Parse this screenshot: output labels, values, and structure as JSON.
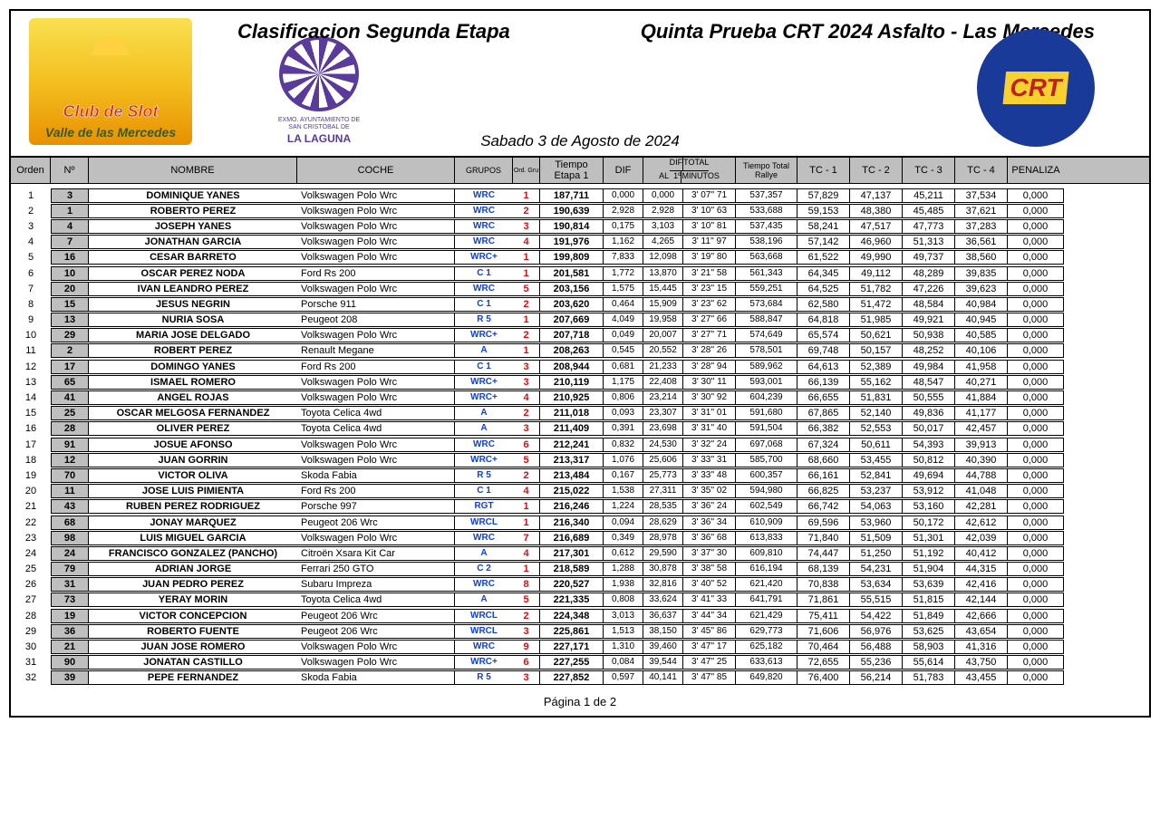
{
  "header": {
    "title_left": "Clasificacion  Segunda Etapa",
    "title_right": "Quinta Prueba CRT 2024 Asfalto - Las Mercedes",
    "date": "Sabado 3 de Agosto  de 2024",
    "logo_left_line1": "Club de Slot",
    "logo_left_line2": "Valle de las Mercedes",
    "logo_center_small": "EXMO. AYUNTAMIENTO DE\nSAN CRISTÓBAL DE",
    "logo_center_big": "LA LAGUNA",
    "logo_right_text": "CRT"
  },
  "columns": {
    "orden": "Orden",
    "num": "Nº",
    "nombre": "NOMBRE",
    "coche": "COCHE",
    "grupos": "GRUPOS",
    "ordgru": "Ord. Gru",
    "tiempo": "Tiempo\nEtapa 1",
    "dif": "DIF",
    "difal": "DIF\nAL  1º",
    "total": "TOTAL\nMINUTOS",
    "rallye": "Tiempo Total\nRallye",
    "tc1": "TC - 1",
    "tc2": "TC - 2",
    "tc3": "TC - 3",
    "tc4": "TC - 4",
    "pen": "PENALIZA"
  },
  "rows": [
    {
      "orden": 1,
      "num": 3,
      "nombre": "DOMINIQUE YANES",
      "coche": "Volkswagen Polo Wrc",
      "grupo": "WRC",
      "og": 1,
      "t": "187,711",
      "dif": "0,000",
      "al": "0,000",
      "tot": "3' 07'' 71",
      "ral": "537,357",
      "tc1": "57,829",
      "tc2": "47,137",
      "tc3": "45,211",
      "tc4": "37,534",
      "pen": "0,000"
    },
    {
      "orden": 2,
      "num": 1,
      "nombre": "ROBERTO PEREZ",
      "coche": "Volkswagen Polo Wrc",
      "grupo": "WRC",
      "og": 2,
      "t": "190,639",
      "dif": "2,928",
      "al": "2,928",
      "tot": "3' 10'' 63",
      "ral": "533,688",
      "tc1": "59,153",
      "tc2": "48,380",
      "tc3": "45,485",
      "tc4": "37,621",
      "pen": "0,000"
    },
    {
      "orden": 3,
      "num": 4,
      "nombre": "JOSEPH YANES",
      "coche": "Volkswagen Polo Wrc",
      "grupo": "WRC",
      "og": 3,
      "t": "190,814",
      "dif": "0,175",
      "al": "3,103",
      "tot": "3' 10'' 81",
      "ral": "537,435",
      "tc1": "58,241",
      "tc2": "47,517",
      "tc3": "47,773",
      "tc4": "37,283",
      "pen": "0,000"
    },
    {
      "orden": 4,
      "num": 7,
      "nombre": "JONATHAN GARCIA",
      "coche": "Volkswagen Polo Wrc",
      "grupo": "WRC",
      "og": 4,
      "t": "191,976",
      "dif": "1,162",
      "al": "4,265",
      "tot": "3' 11'' 97",
      "ral": "538,196",
      "tc1": "57,142",
      "tc2": "46,960",
      "tc3": "51,313",
      "tc4": "36,561",
      "pen": "0,000"
    },
    {
      "orden": 5,
      "num": 16,
      "nombre": "CESAR BARRETO",
      "coche": "Volkswagen Polo Wrc",
      "grupo": "WRC+",
      "og": 1,
      "t": "199,809",
      "dif": "7,833",
      "al": "12,098",
      "tot": "3' 19'' 80",
      "ral": "563,668",
      "tc1": "61,522",
      "tc2": "49,990",
      "tc3": "49,737",
      "tc4": "38,560",
      "pen": "0,000"
    },
    {
      "orden": 6,
      "num": 10,
      "nombre": "OSCAR PEREZ NODA",
      "coche": "Ford Rs 200",
      "grupo": "C 1",
      "og": 1,
      "t": "201,581",
      "dif": "1,772",
      "al": "13,870",
      "tot": "3' 21'' 58",
      "ral": "561,343",
      "tc1": "64,345",
      "tc2": "49,112",
      "tc3": "48,289",
      "tc4": "39,835",
      "pen": "0,000"
    },
    {
      "orden": 7,
      "num": 20,
      "nombre": "IVAN LEANDRO PEREZ",
      "coche": "Volkswagen Polo Wrc",
      "grupo": "WRC",
      "og": 5,
      "t": "203,156",
      "dif": "1,575",
      "al": "15,445",
      "tot": "3' 23'' 15",
      "ral": "559,251",
      "tc1": "64,525",
      "tc2": "51,782",
      "tc3": "47,226",
      "tc4": "39,623",
      "pen": "0,000"
    },
    {
      "orden": 8,
      "num": 15,
      "nombre": "JESUS NEGRIN",
      "coche": "Porsche 911",
      "grupo": "C 1",
      "og": 2,
      "t": "203,620",
      "dif": "0,464",
      "al": "15,909",
      "tot": "3' 23'' 62",
      "ral": "573,684",
      "tc1": "62,580",
      "tc2": "51,472",
      "tc3": "48,584",
      "tc4": "40,984",
      "pen": "0,000"
    },
    {
      "orden": 9,
      "num": 13,
      "nombre": "NURIA SOSA",
      "coche": "Peugeot 208",
      "grupo": "R 5",
      "og": 1,
      "t": "207,669",
      "dif": "4,049",
      "al": "19,958",
      "tot": "3' 27'' 66",
      "ral": "588,847",
      "tc1": "64,818",
      "tc2": "51,985",
      "tc3": "49,921",
      "tc4": "40,945",
      "pen": "0,000"
    },
    {
      "orden": 10,
      "num": 29,
      "nombre": "MARIA JOSE DELGADO",
      "coche": "Volkswagen Polo Wrc",
      "grupo": "WRC+",
      "og": 2,
      "t": "207,718",
      "dif": "0,049",
      "al": "20,007",
      "tot": "3' 27'' 71",
      "ral": "574,649",
      "tc1": "65,574",
      "tc2": "50,621",
      "tc3": "50,938",
      "tc4": "40,585",
      "pen": "0,000"
    },
    {
      "orden": 11,
      "num": 2,
      "nombre": "ROBERT PEREZ",
      "coche": "Renault Megane",
      "grupo": "A",
      "og": 1,
      "t": "208,263",
      "dif": "0,545",
      "al": "20,552",
      "tot": "3' 28'' 26",
      "ral": "578,501",
      "tc1": "69,748",
      "tc2": "50,157",
      "tc3": "48,252",
      "tc4": "40,106",
      "pen": "0,000"
    },
    {
      "orden": 12,
      "num": 17,
      "nombre": "DOMINGO YANES",
      "coche": "Ford Rs 200",
      "grupo": "C 1",
      "og": 3,
      "t": "208,944",
      "dif": "0,681",
      "al": "21,233",
      "tot": "3' 28'' 94",
      "ral": "589,962",
      "tc1": "64,613",
      "tc2": "52,389",
      "tc3": "49,984",
      "tc4": "41,958",
      "pen": "0,000"
    },
    {
      "orden": 13,
      "num": 65,
      "nombre": "ISMAEL ROMERO",
      "coche": "Volkswagen Polo Wrc",
      "grupo": "WRC+",
      "og": 3,
      "t": "210,119",
      "dif": "1,175",
      "al": "22,408",
      "tot": "3' 30'' 11",
      "ral": "593,001",
      "tc1": "66,139",
      "tc2": "55,162",
      "tc3": "48,547",
      "tc4": "40,271",
      "pen": "0,000"
    },
    {
      "orden": 14,
      "num": 41,
      "nombre": "ANGEL ROJAS",
      "coche": "Volkswagen Polo Wrc",
      "grupo": "WRC+",
      "og": 4,
      "t": "210,925",
      "dif": "0,806",
      "al": "23,214",
      "tot": "3' 30'' 92",
      "ral": "604,239",
      "tc1": "66,655",
      "tc2": "51,831",
      "tc3": "50,555",
      "tc4": "41,884",
      "pen": "0,000"
    },
    {
      "orden": 15,
      "num": 25,
      "nombre": "OSCAR MELGOSA FERNANDEZ",
      "coche": "Toyota Celica 4wd",
      "grupo": "A",
      "og": 2,
      "t": "211,018",
      "dif": "0,093",
      "al": "23,307",
      "tot": "3' 31'' 01",
      "ral": "591,680",
      "tc1": "67,865",
      "tc2": "52,140",
      "tc3": "49,836",
      "tc4": "41,177",
      "pen": "0,000"
    },
    {
      "orden": 16,
      "num": 28,
      "nombre": "OLIVER PEREZ",
      "coche": "Toyota Celica 4wd",
      "grupo": "A",
      "og": 3,
      "t": "211,409",
      "dif": "0,391",
      "al": "23,698",
      "tot": "3' 31'' 40",
      "ral": "591,504",
      "tc1": "66,382",
      "tc2": "52,553",
      "tc3": "50,017",
      "tc4": "42,457",
      "pen": "0,000"
    },
    {
      "orden": 17,
      "num": 91,
      "nombre": "JOSUE AFONSO",
      "coche": "Volkswagen Polo Wrc",
      "grupo": "WRC",
      "og": 6,
      "t": "212,241",
      "dif": "0,832",
      "al": "24,530",
      "tot": "3' 32'' 24",
      "ral": "697,068",
      "tc1": "67,324",
      "tc2": "50,611",
      "tc3": "54,393",
      "tc4": "39,913",
      "pen": "0,000"
    },
    {
      "orden": 18,
      "num": 12,
      "nombre": "JUAN GORRIN",
      "coche": "Volkswagen Polo Wrc",
      "grupo": "WRC+",
      "og": 5,
      "t": "213,317",
      "dif": "1,076",
      "al": "25,606",
      "tot": "3' 33'' 31",
      "ral": "585,700",
      "tc1": "68,660",
      "tc2": "53,455",
      "tc3": "50,812",
      "tc4": "40,390",
      "pen": "0,000"
    },
    {
      "orden": 19,
      "num": 70,
      "nombre": "VICTOR OLIVA",
      "coche": "Skoda Fabia",
      "grupo": "R 5",
      "og": 2,
      "t": "213,484",
      "dif": "0,167",
      "al": "25,773",
      "tot": "3' 33'' 48",
      "ral": "600,357",
      "tc1": "66,161",
      "tc2": "52,841",
      "tc3": "49,694",
      "tc4": "44,788",
      "pen": "0,000"
    },
    {
      "orden": 20,
      "num": 11,
      "nombre": "JOSE LUIS PIMIENTA",
      "coche": "Ford Rs 200",
      "grupo": "C 1",
      "og": 4,
      "t": "215,022",
      "dif": "1,538",
      "al": "27,311",
      "tot": "3' 35'' 02",
      "ral": "594,980",
      "tc1": "66,825",
      "tc2": "53,237",
      "tc3": "53,912",
      "tc4": "41,048",
      "pen": "0,000"
    },
    {
      "orden": 21,
      "num": 43,
      "nombre": "RUBEN PEREZ RODRIGUEZ",
      "coche": "Porsche 997",
      "grupo": "RGT",
      "og": 1,
      "t": "216,246",
      "dif": "1,224",
      "al": "28,535",
      "tot": "3' 36'' 24",
      "ral": "602,549",
      "tc1": "66,742",
      "tc2": "54,063",
      "tc3": "53,160",
      "tc4": "42,281",
      "pen": "0,000"
    },
    {
      "orden": 22,
      "num": 68,
      "nombre": "JONAY MARQUEZ",
      "coche": "Peugeot 206 Wrc",
      "grupo": "WRCL",
      "og": 1,
      "t": "216,340",
      "dif": "0,094",
      "al": "28,629",
      "tot": "3' 36'' 34",
      "ral": "610,909",
      "tc1": "69,596",
      "tc2": "53,960",
      "tc3": "50,172",
      "tc4": "42,612",
      "pen": "0,000"
    },
    {
      "orden": 23,
      "num": 98,
      "nombre": "LUIS MIGUEL GARCIA",
      "coche": "Volkswagen Polo Wrc",
      "grupo": "WRC",
      "og": 7,
      "t": "216,689",
      "dif": "0,349",
      "al": "28,978",
      "tot": "3' 36'' 68",
      "ral": "613,833",
      "tc1": "71,840",
      "tc2": "51,509",
      "tc3": "51,301",
      "tc4": "42,039",
      "pen": "0,000"
    },
    {
      "orden": 24,
      "num": 24,
      "nombre": "FRANCISCO GONZALEZ (PANCHO)",
      "coche": "Citroën Xsara Kit Car",
      "grupo": "A",
      "og": 4,
      "t": "217,301",
      "dif": "0,612",
      "al": "29,590",
      "tot": "3' 37'' 30",
      "ral": "609,810",
      "tc1": "74,447",
      "tc2": "51,250",
      "tc3": "51,192",
      "tc4": "40,412",
      "pen": "0,000"
    },
    {
      "orden": 25,
      "num": 79,
      "nombre": "ADRIAN JORGE",
      "coche": "Ferrari 250 GTO",
      "grupo": "C 2",
      "og": 1,
      "t": "218,589",
      "dif": "1,288",
      "al": "30,878",
      "tot": "3' 38'' 58",
      "ral": "616,194",
      "tc1": "68,139",
      "tc2": "54,231",
      "tc3": "51,904",
      "tc4": "44,315",
      "pen": "0,000"
    },
    {
      "orden": 26,
      "num": 31,
      "nombre": "JUAN PEDRO PEREZ",
      "coche": "Subaru Impreza",
      "grupo": "WRC",
      "og": 8,
      "t": "220,527",
      "dif": "1,938",
      "al": "32,816",
      "tot": "3' 40'' 52",
      "ral": "621,420",
      "tc1": "70,838",
      "tc2": "53,634",
      "tc3": "53,639",
      "tc4": "42,416",
      "pen": "0,000"
    },
    {
      "orden": 27,
      "num": 73,
      "nombre": "YERAY MORIN",
      "coche": "Toyota Celica 4wd",
      "grupo": "A",
      "og": 5,
      "t": "221,335",
      "dif": "0,808",
      "al": "33,624",
      "tot": "3' 41'' 33",
      "ral": "641,791",
      "tc1": "71,861",
      "tc2": "55,515",
      "tc3": "51,815",
      "tc4": "42,144",
      "pen": "0,000"
    },
    {
      "orden": 28,
      "num": 19,
      "nombre": "VICTOR CONCEPCION",
      "coche": "Peugeot 206 Wrc",
      "grupo": "WRCL",
      "og": 2,
      "t": "224,348",
      "dif": "3,013",
      "al": "36,637",
      "tot": "3' 44'' 34",
      "ral": "621,429",
      "tc1": "75,411",
      "tc2": "54,422",
      "tc3": "51,849",
      "tc4": "42,666",
      "pen": "0,000"
    },
    {
      "orden": 29,
      "num": 36,
      "nombre": "ROBERTO FUENTE",
      "coche": "Peugeot 206 Wrc",
      "grupo": "WRCL",
      "og": 3,
      "t": "225,861",
      "dif": "1,513",
      "al": "38,150",
      "tot": "3' 45'' 86",
      "ral": "629,773",
      "tc1": "71,606",
      "tc2": "56,976",
      "tc3": "53,625",
      "tc4": "43,654",
      "pen": "0,000"
    },
    {
      "orden": 30,
      "num": 21,
      "nombre": "JUAN JOSE ROMERO",
      "coche": "Volkswagen Polo Wrc",
      "grupo": "WRC",
      "og": 9,
      "t": "227,171",
      "dif": "1,310",
      "al": "39,460",
      "tot": "3' 47'' 17",
      "ral": "625,182",
      "tc1": "70,464",
      "tc2": "56,488",
      "tc3": "58,903",
      "tc4": "41,316",
      "pen": "0,000"
    },
    {
      "orden": 31,
      "num": 90,
      "nombre": "JONATAN CASTILLO",
      "coche": "Volkswagen Polo Wrc",
      "grupo": "WRC+",
      "og": 6,
      "t": "227,255",
      "dif": "0,084",
      "al": "39,544",
      "tot": "3' 47'' 25",
      "ral": "633,613",
      "tc1": "72,655",
      "tc2": "55,236",
      "tc3": "55,614",
      "tc4": "43,750",
      "pen": "0,000"
    },
    {
      "orden": 32,
      "num": 39,
      "nombre": "PEPE FERNANDEZ",
      "coche": "Skoda Fabia",
      "grupo": "R 5",
      "og": 3,
      "t": "227,852",
      "dif": "0,597",
      "al": "40,141",
      "tot": "3' 47'' 85",
      "ral": "649,820",
      "tc1": "76,400",
      "tc2": "56,214",
      "tc3": "51,783",
      "tc4": "43,455",
      "pen": "0,000"
    }
  ],
  "footer": "Página 1 de 2"
}
